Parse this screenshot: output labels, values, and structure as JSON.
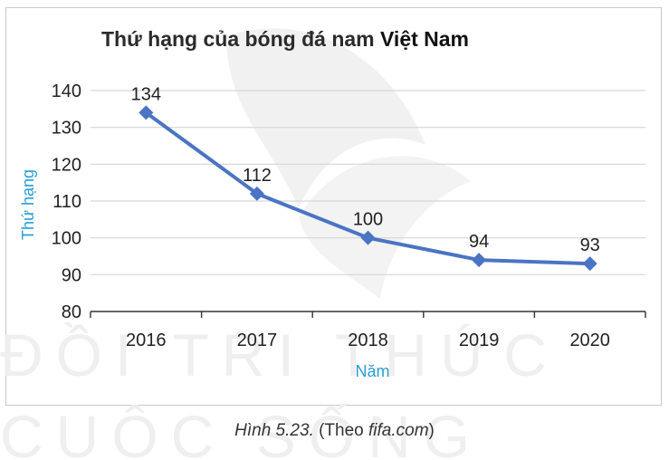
{
  "chart_data": {
    "type": "line",
    "title_part1": "Thứ hạng của bóng đá nam ",
    "title_part2": "Việt Nam",
    "xlabel": "Năm",
    "ylabel": "Thứ hạng",
    "categories": [
      "2016",
      "2017",
      "2018",
      "2019",
      "2020"
    ],
    "values": [
      134,
      112,
      100,
      94,
      93
    ],
    "data_labels": [
      "134",
      "112",
      "100",
      "94",
      "93"
    ],
    "yticks": [
      80,
      90,
      100,
      110,
      120,
      130,
      140
    ],
    "ylim": [
      80,
      140
    ],
    "grid": true,
    "series_color": "#4a74c4",
    "axis_label_color": "#2a9ed6"
  },
  "caption": {
    "figure_label": "Hình 5.23.",
    "source_open": " (Theo ",
    "source": "fifa.com",
    "source_close": ")"
  },
  "watermark": {
    "line1": "ĐỒI TRI THỨC",
    "line2": "CUỘC SỐNG"
  }
}
